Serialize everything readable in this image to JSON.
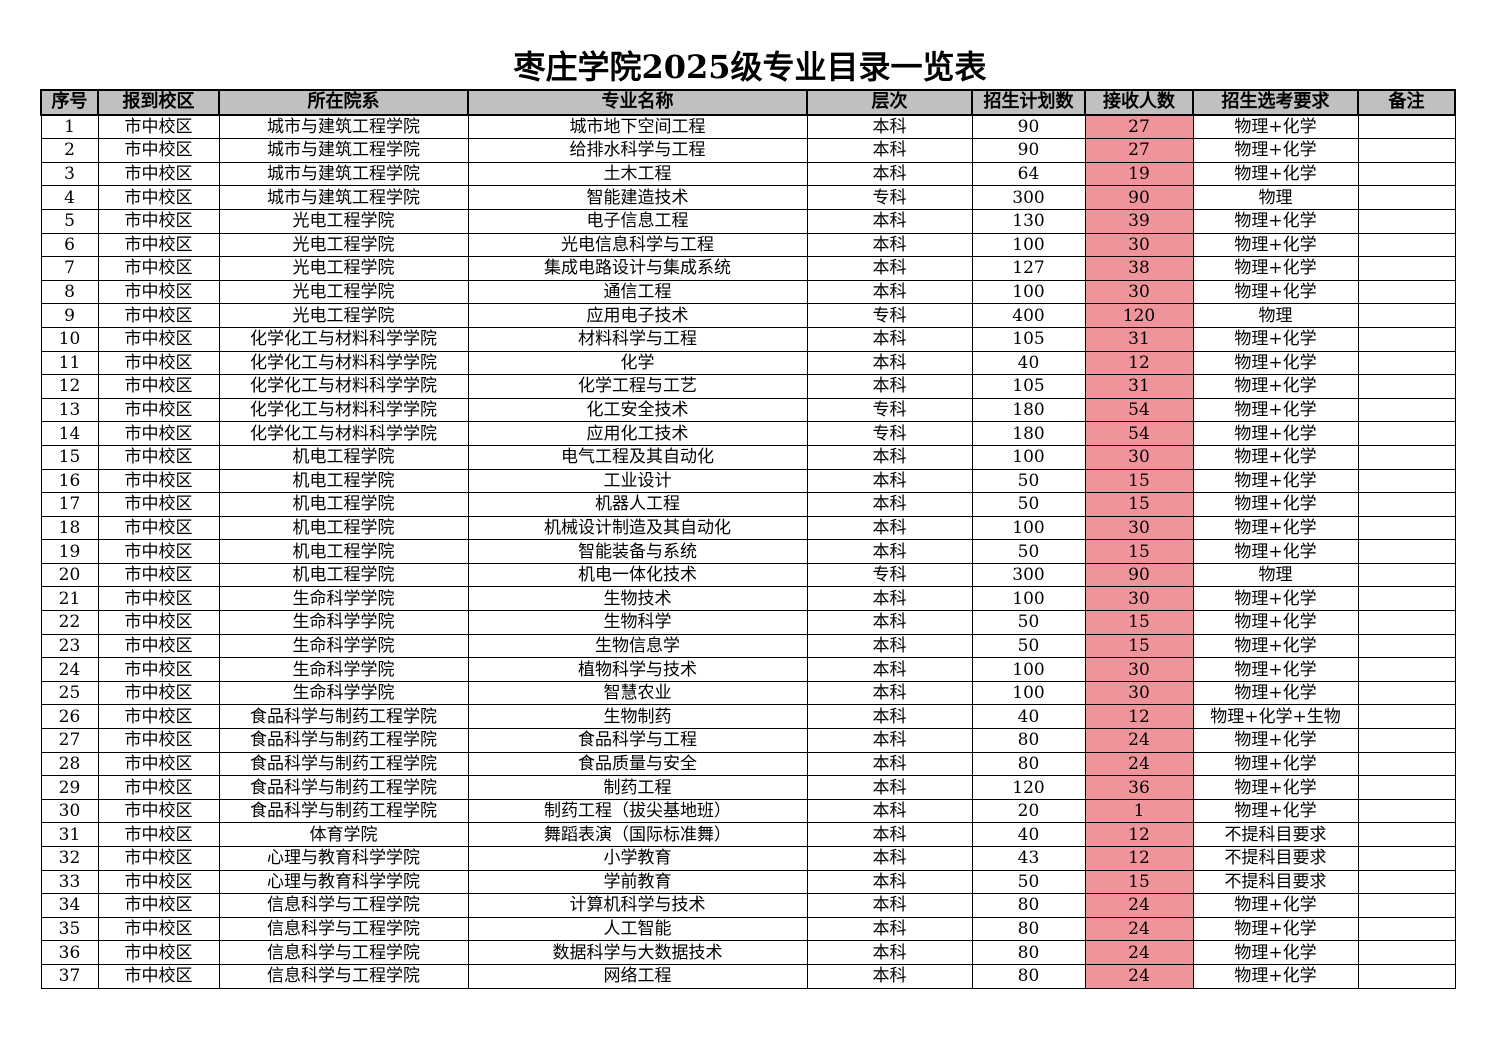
{
  "title": "枣庄学院2025级专业目录一览表",
  "colors": {
    "header_bg": "#c0c0c0",
    "highlight": "#f0949c"
  },
  "columns": [
    "序号",
    "报到校区",
    "所在院系",
    "专业名称",
    "层次",
    "招生计划数",
    "接收人数",
    "招生选考要求",
    "备注"
  ],
  "rows": [
    [
      "1",
      "市中校区",
      "城市与建筑工程学院",
      "城市地下空间工程",
      "本科",
      "90",
      "27",
      "物理+化学",
      ""
    ],
    [
      "2",
      "市中校区",
      "城市与建筑工程学院",
      "给排水科学与工程",
      "本科",
      "90",
      "27",
      "物理+化学",
      ""
    ],
    [
      "3",
      "市中校区",
      "城市与建筑工程学院",
      "土木工程",
      "本科",
      "64",
      "19",
      "物理+化学",
      ""
    ],
    [
      "4",
      "市中校区",
      "城市与建筑工程学院",
      "智能建造技术",
      "专科",
      "300",
      "90",
      "物理",
      ""
    ],
    [
      "5",
      "市中校区",
      "光电工程学院",
      "电子信息工程",
      "本科",
      "130",
      "39",
      "物理+化学",
      ""
    ],
    [
      "6",
      "市中校区",
      "光电工程学院",
      "光电信息科学与工程",
      "本科",
      "100",
      "30",
      "物理+化学",
      ""
    ],
    [
      "7",
      "市中校区",
      "光电工程学院",
      "集成电路设计与集成系统",
      "本科",
      "127",
      "38",
      "物理+化学",
      ""
    ],
    [
      "8",
      "市中校区",
      "光电工程学院",
      "通信工程",
      "本科",
      "100",
      "30",
      "物理+化学",
      ""
    ],
    [
      "9",
      "市中校区",
      "光电工程学院",
      "应用电子技术",
      "专科",
      "400",
      "120",
      "物理",
      ""
    ],
    [
      "10",
      "市中校区",
      "化学化工与材料科学学院",
      "材料科学与工程",
      "本科",
      "105",
      "31",
      "物理+化学",
      ""
    ],
    [
      "11",
      "市中校区",
      "化学化工与材料科学学院",
      "化学",
      "本科",
      "40",
      "12",
      "物理+化学",
      ""
    ],
    [
      "12",
      "市中校区",
      "化学化工与材料科学学院",
      "化学工程与工艺",
      "本科",
      "105",
      "31",
      "物理+化学",
      ""
    ],
    [
      "13",
      "市中校区",
      "化学化工与材料科学学院",
      "化工安全技术",
      "专科",
      "180",
      "54",
      "物理+化学",
      ""
    ],
    [
      "14",
      "市中校区",
      "化学化工与材料科学学院",
      "应用化工技术",
      "专科",
      "180",
      "54",
      "物理+化学",
      ""
    ],
    [
      "15",
      "市中校区",
      "机电工程学院",
      "电气工程及其自动化",
      "本科",
      "100",
      "30",
      "物理+化学",
      ""
    ],
    [
      "16",
      "市中校区",
      "机电工程学院",
      "工业设计",
      "本科",
      "50",
      "15",
      "物理+化学",
      ""
    ],
    [
      "17",
      "市中校区",
      "机电工程学院",
      "机器人工程",
      "本科",
      "50",
      "15",
      "物理+化学",
      ""
    ],
    [
      "18",
      "市中校区",
      "机电工程学院",
      "机械设计制造及其自动化",
      "本科",
      "100",
      "30",
      "物理+化学",
      ""
    ],
    [
      "19",
      "市中校区",
      "机电工程学院",
      "智能装备与系统",
      "本科",
      "50",
      "15",
      "物理+化学",
      ""
    ],
    [
      "20",
      "市中校区",
      "机电工程学院",
      "机电一体化技术",
      "专科",
      "300",
      "90",
      "物理",
      ""
    ],
    [
      "21",
      "市中校区",
      "生命科学学院",
      "生物技术",
      "本科",
      "100",
      "30",
      "物理+化学",
      ""
    ],
    [
      "22",
      "市中校区",
      "生命科学学院",
      "生物科学",
      "本科",
      "50",
      "15",
      "物理+化学",
      ""
    ],
    [
      "23",
      "市中校区",
      "生命科学学院",
      "生物信息学",
      "本科",
      "50",
      "15",
      "物理+化学",
      ""
    ],
    [
      "24",
      "市中校区",
      "生命科学学院",
      "植物科学与技术",
      "本科",
      "100",
      "30",
      "物理+化学",
      ""
    ],
    [
      "25",
      "市中校区",
      "生命科学学院",
      "智慧农业",
      "本科",
      "100",
      "30",
      "物理+化学",
      ""
    ],
    [
      "26",
      "市中校区",
      "食品科学与制药工程学院",
      "生物制药",
      "本科",
      "40",
      "12",
      "物理+化学+生物",
      ""
    ],
    [
      "27",
      "市中校区",
      "食品科学与制药工程学院",
      "食品科学与工程",
      "本科",
      "80",
      "24",
      "物理+化学",
      ""
    ],
    [
      "28",
      "市中校区",
      "食品科学与制药工程学院",
      "食品质量与安全",
      "本科",
      "80",
      "24",
      "物理+化学",
      ""
    ],
    [
      "29",
      "市中校区",
      "食品科学与制药工程学院",
      "制药工程",
      "本科",
      "120",
      "36",
      "物理+化学",
      ""
    ],
    [
      "30",
      "市中校区",
      "食品科学与制药工程学院",
      "制药工程（拔尖基地班）",
      "本科",
      "20",
      "1",
      "物理+化学",
      ""
    ],
    [
      "31",
      "市中校区",
      "体育学院",
      "舞蹈表演（国际标准舞）",
      "本科",
      "40",
      "12",
      "不提科目要求",
      ""
    ],
    [
      "32",
      "市中校区",
      "心理与教育科学学院",
      "小学教育",
      "本科",
      "43",
      "12",
      "不提科目要求",
      ""
    ],
    [
      "33",
      "市中校区",
      "心理与教育科学学院",
      "学前教育",
      "本科",
      "50",
      "15",
      "不提科目要求",
      ""
    ],
    [
      "34",
      "市中校区",
      "信息科学与工程学院",
      "计算机科学与技术",
      "本科",
      "80",
      "24",
      "物理+化学",
      ""
    ],
    [
      "35",
      "市中校区",
      "信息科学与工程学院",
      "人工智能",
      "本科",
      "80",
      "24",
      "物理+化学",
      ""
    ],
    [
      "36",
      "市中校区",
      "信息科学与工程学院",
      "数据科学与大数据技术",
      "本科",
      "80",
      "24",
      "物理+化学",
      ""
    ],
    [
      "37",
      "市中校区",
      "信息科学与工程学院",
      "网络工程",
      "本科",
      "80",
      "24",
      "物理+化学",
      ""
    ]
  ]
}
